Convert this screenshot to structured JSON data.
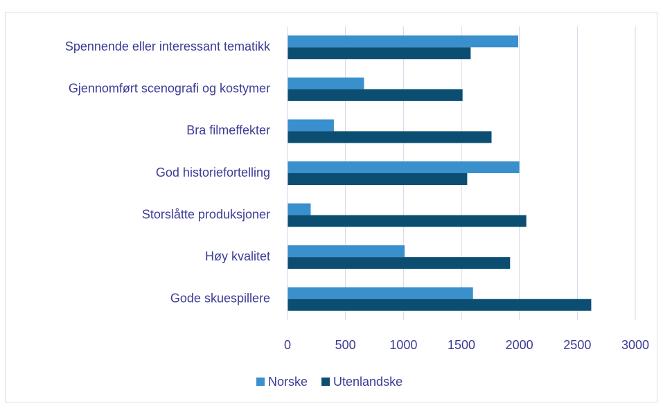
{
  "chart_data": {
    "type": "hbar",
    "categories": [
      "Spennende eller interessant tematikk",
      "Gjennomført scenografi og kostymer",
      "Bra filmeffekter",
      "God historiefortelling",
      "Storslåtte produksjoner",
      "Høy kvalitet",
      "Gode skuespillere"
    ],
    "series": [
      {
        "name": "Norske",
        "color": "#3a8fcd",
        "values": [
          1990,
          660,
          400,
          2000,
          200,
          1010,
          1600
        ]
      },
      {
        "name": "Utenlandske",
        "color": "#0c4e72",
        "values": [
          1580,
          1510,
          1760,
          1550,
          2060,
          1920,
          2620
        ]
      }
    ],
    "xlim": [
      0,
      3000
    ],
    "xticks": [
      0,
      500,
      1000,
      1500,
      2000,
      2500,
      3000
    ],
    "grid": true,
    "legend": "bottom"
  }
}
